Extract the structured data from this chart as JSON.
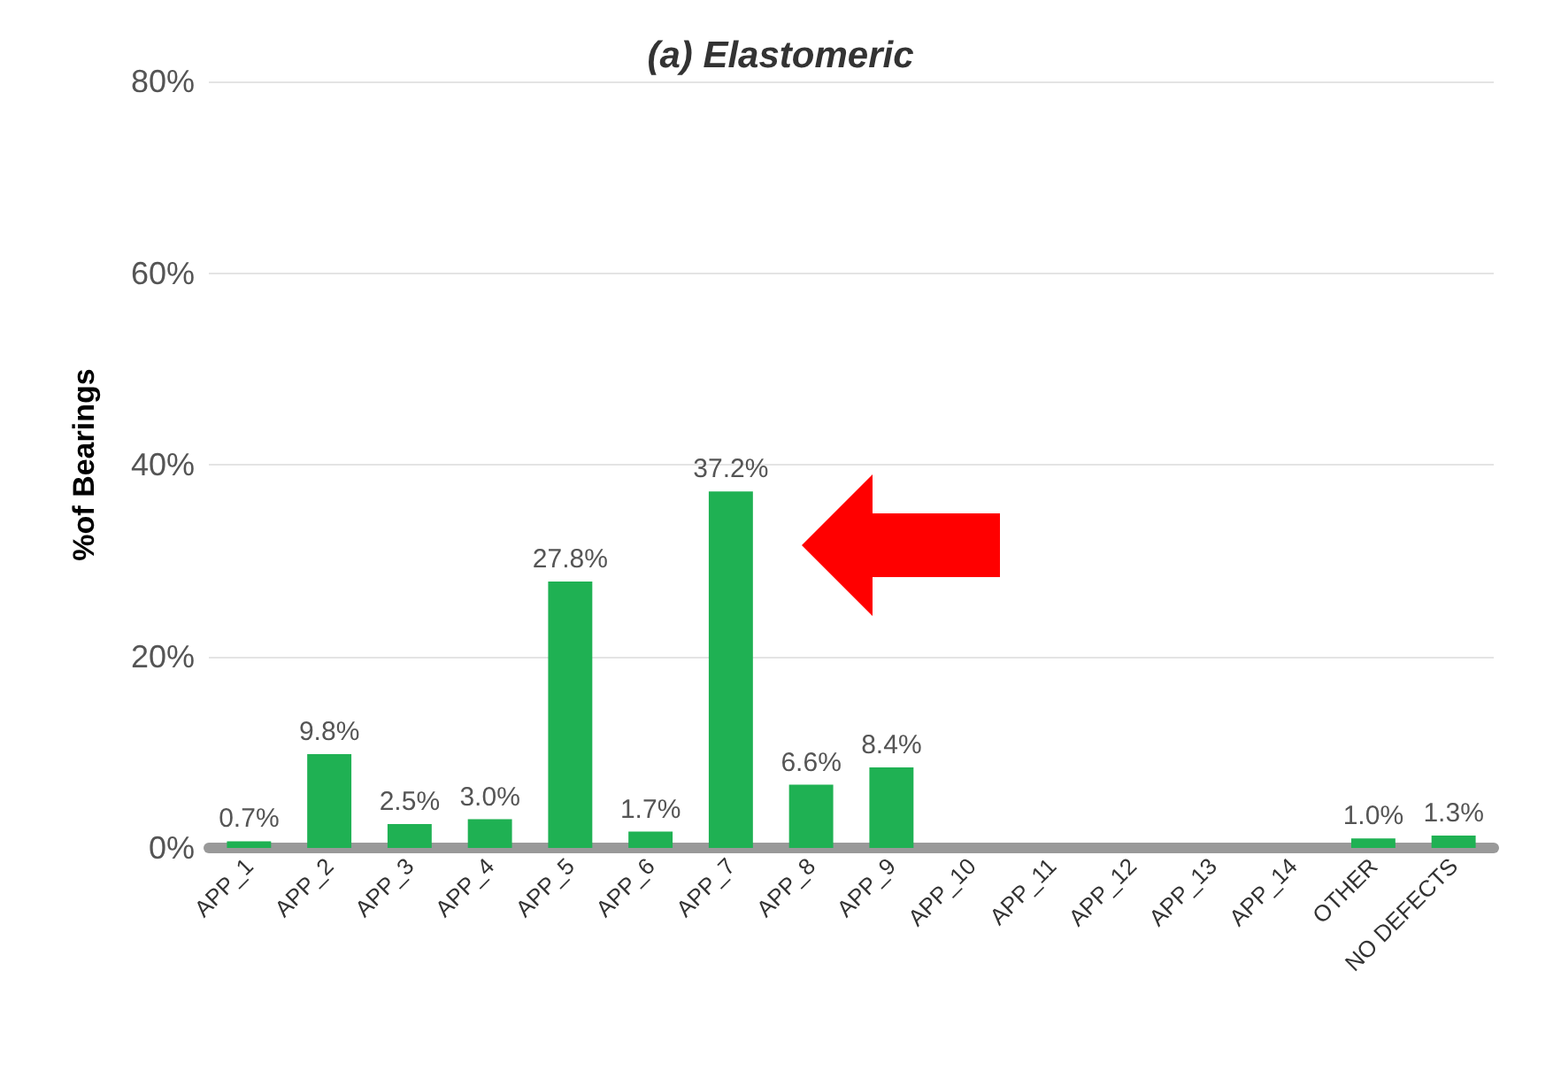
{
  "chart_data": {
    "type": "bar",
    "title": "(a) Elastomeric",
    "ylabel": "%of Bearings",
    "categories": [
      "APP_1",
      "APP_2",
      "APP_3",
      "APP_4",
      "APP_5",
      "APP_6",
      "APP_7",
      "APP_8",
      "APP_9",
      "APP_10",
      "APP_11",
      "APP_12",
      "APP_13",
      "APP_14",
      "OTHER",
      "NO DEFECTS"
    ],
    "values": [
      0.7,
      9.8,
      2.5,
      3.0,
      27.8,
      1.7,
      37.2,
      6.6,
      8.4,
      0,
      0,
      0,
      0,
      0,
      1.0,
      1.3
    ],
    "value_labels": [
      "0.7%",
      "9.8%",
      "2.5%",
      "3.0%",
      "27.8%",
      "1.7%",
      "37.2%",
      "6.6%",
      "8.4%",
      null,
      null,
      null,
      null,
      null,
      "1.0%",
      "1.3%"
    ],
    "color": "#1fb153",
    "ylim": [
      0,
      80
    ],
    "yticks": [
      {
        "value": 0,
        "label": "0%"
      },
      {
        "value": 20,
        "label": "20%"
      },
      {
        "value": 40,
        "label": "40%"
      },
      {
        "value": 60,
        "label": "60%"
      },
      {
        "value": 80,
        "label": "80%"
      }
    ],
    "grid": "y"
  }
}
